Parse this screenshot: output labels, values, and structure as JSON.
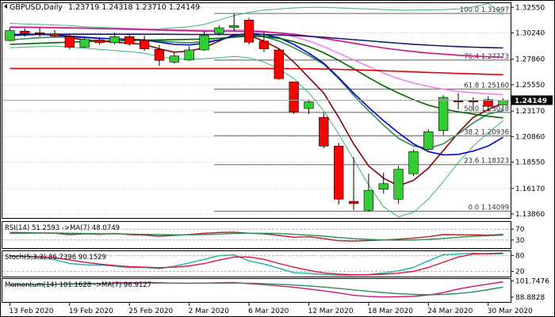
{
  "chart_data": [
    {
      "type": "candlestick",
      "title": "GBPUSD,Daily",
      "ohlc_header": "1.23719 1.24318 1.23710 1.24149",
      "current_price": 1.24149,
      "current_price_label": "1.24149",
      "ylim": [
        1.135,
        1.33
      ],
      "grid": true,
      "y_ticks": [
        {
          "value": 1.3255,
          "label": "1.32550"
        },
        {
          "value": 1.3024,
          "label": "1.30240"
        },
        {
          "value": 1.2786,
          "label": "1.27860"
        },
        {
          "value": 1.2555,
          "label": "1.25550"
        },
        {
          "value": 1.2317,
          "label": "1.23170"
        },
        {
          "value": 1.2086,
          "label": "1.20860"
        },
        {
          "value": 1.1855,
          "label": "1.18550"
        },
        {
          "value": 1.1617,
          "label": "1.16170"
        },
        {
          "value": 1.1386,
          "label": "1.13860"
        }
      ],
      "x_labels": [
        {
          "index": 0,
          "label": "13 Feb 2020"
        },
        {
          "index": 4,
          "label": "19 Feb 2020"
        },
        {
          "index": 8,
          "label": "25 Feb 2020"
        },
        {
          "index": 12,
          "label": "2 Mar 2020"
        },
        {
          "index": 16,
          "label": "6 Mar 2020"
        },
        {
          "index": 20,
          "label": "12 Mar 2020"
        },
        {
          "index": 24,
          "label": "18 Mar 2020"
        },
        {
          "index": 28,
          "label": "24 Mar 2020"
        },
        {
          "index": 32,
          "label": "30 Mar 2020"
        }
      ],
      "candles": [
        {
          "o": 1.2955,
          "h": 1.307,
          "l": 1.295,
          "c": 1.3045
        },
        {
          "o": 1.304,
          "h": 1.3065,
          "l": 1.299,
          "c": 1.302
        },
        {
          "o": 1.3025,
          "h": 1.307,
          "l": 1.299,
          "c": 1.3015
        },
        {
          "o": 1.3015,
          "h": 1.305,
          "l": 1.2985,
          "c": 1.2995
        },
        {
          "o": 1.299,
          "h": 1.301,
          "l": 1.2875,
          "c": 1.2895
        },
        {
          "o": 1.2895,
          "h": 1.298,
          "l": 1.2885,
          "c": 1.2965
        },
        {
          "o": 1.296,
          "h": 1.2985,
          "l": 1.2915,
          "c": 1.2935
        },
        {
          "o": 1.2935,
          "h": 1.3025,
          "l": 1.292,
          "c": 1.299
        },
        {
          "o": 1.299,
          "h": 1.3015,
          "l": 1.2905,
          "c": 1.2925
        },
        {
          "o": 1.296,
          "h": 1.3,
          "l": 1.286,
          "c": 1.288
        },
        {
          "o": 1.2875,
          "h": 1.2915,
          "l": 1.2725,
          "c": 1.2775
        },
        {
          "o": 1.276,
          "h": 1.2845,
          "l": 1.2745,
          "c": 1.2815
        },
        {
          "o": 1.278,
          "h": 1.29,
          "l": 1.277,
          "c": 1.287
        },
        {
          "o": 1.287,
          "h": 1.304,
          "l": 1.286,
          "c": 1.3
        },
        {
          "o": 1.302,
          "h": 1.309,
          "l": 1.3,
          "c": 1.307
        },
        {
          "o": 1.3072,
          "h": 1.32,
          "l": 1.304,
          "c": 1.309
        },
        {
          "o": 1.314,
          "h": 1.316,
          "l": 1.292,
          "c": 1.294
        },
        {
          "o": 1.295,
          "h": 1.303,
          "l": 1.285,
          "c": 1.288
        },
        {
          "o": 1.287,
          "h": 1.288,
          "l": 1.26,
          "c": 1.261
        },
        {
          "o": 1.258,
          "h": 1.258,
          "l": 1.229,
          "c": 1.231
        },
        {
          "o": 1.234,
          "h": 1.242,
          "l": 1.229,
          "c": 1.24
        },
        {
          "o": 1.226,
          "h": 1.23,
          "l": 1.198,
          "c": 1.2
        },
        {
          "o": 1.2,
          "h": 1.203,
          "l": 1.147,
          "c": 1.152
        },
        {
          "o": 1.15,
          "h": 1.19,
          "l": 1.142,
          "c": 1.148
        },
        {
          "o": 1.142,
          "h": 1.175,
          "l": 1.141,
          "c": 1.16
        },
        {
          "o": 1.161,
          "h": 1.176,
          "l": 1.157,
          "c": 1.166
        },
        {
          "o": 1.152,
          "h": 1.182,
          "l": 1.148,
          "c": 1.179
        },
        {
          "o": 1.175,
          "h": 1.197,
          "l": 1.173,
          "c": 1.195
        },
        {
          "o": 1.197,
          "h": 1.215,
          "l": 1.196,
          "c": 1.213
        },
        {
          "o": 1.214,
          "h": 1.246,
          "l": 1.21,
          "c": 1.244
        },
        {
          "o": 1.241,
          "h": 1.248,
          "l": 1.233,
          "c": 1.24
        },
        {
          "o": 1.241,
          "h": 1.244,
          "l": 1.232,
          "c": 1.24
        },
        {
          "o": 1.242,
          "h": 1.245,
          "l": 1.232,
          "c": 1.236
        },
        {
          "o": 1.23719,
          "h": 1.24318,
          "l": 1.2371,
          "c": 1.24149
        }
      ],
      "moving_averages": [
        {
          "color": "#8b0000",
          "values": [
            1.3,
            1.301,
            1.3015,
            1.301,
            1.298,
            1.296,
            1.295,
            1.294,
            1.293,
            1.292,
            1.288,
            1.285,
            1.286,
            1.289,
            1.295,
            1.301,
            1.3,
            1.295,
            1.288,
            1.276,
            1.262,
            1.248,
            1.226,
            1.202,
            1.182,
            1.171,
            1.164,
            1.169,
            1.18,
            1.196,
            1.212,
            1.226,
            1.233,
            1.239
          ]
        },
        {
          "color": "#2e8b57",
          "values": [
            1.296,
            1.297,
            1.298,
            1.2985,
            1.2985,
            1.298,
            1.2975,
            1.297,
            1.2965,
            1.296,
            1.295,
            1.294,
            1.2935,
            1.2945,
            1.296,
            1.299,
            1.301,
            1.299,
            1.295,
            1.289,
            1.282,
            1.274,
            1.261,
            1.246,
            1.232,
            1.219,
            1.207,
            1.2,
            1.198,
            1.202,
            1.211,
            1.221,
            1.229,
            1.232
          ]
        },
        {
          "color": "#0000cd",
          "values": [
            1.3,
            1.3005,
            1.301,
            1.3005,
            1.2995,
            1.2985,
            1.2975,
            1.297,
            1.2965,
            1.296,
            1.294,
            1.292,
            1.2915,
            1.293,
            1.296,
            1.3,
            1.302,
            1.301,
            1.298,
            1.292,
            1.284,
            1.275,
            1.262,
            1.248,
            1.235,
            1.223,
            1.212,
            1.202,
            1.195,
            1.192,
            1.1925,
            1.1955,
            1.2,
            1.208
          ]
        },
        {
          "color": "#006400",
          "values": [
            1.292,
            1.2925,
            1.293,
            1.2935,
            1.294,
            1.2945,
            1.295,
            1.2952,
            1.2955,
            1.2958,
            1.296,
            1.2962,
            1.2965,
            1.2968,
            1.2975,
            1.2985,
            1.2995,
            1.299,
            1.2975,
            1.2945,
            1.29,
            1.2845,
            1.2775,
            1.27,
            1.262,
            1.2545,
            1.248,
            1.242,
            1.237,
            1.2335,
            1.231,
            1.229,
            1.227,
            1.2255
          ]
        },
        {
          "color": "#ee82ee",
          "values": [
            1.308,
            1.3078,
            1.3075,
            1.3072,
            1.307,
            1.3068,
            1.3065,
            1.3062,
            1.306,
            1.3058,
            1.3055,
            1.3052,
            1.305,
            1.3048,
            1.3048,
            1.305,
            1.305,
            1.304,
            1.302,
            1.299,
            1.295,
            1.29,
            1.284,
            1.278,
            1.272,
            1.266,
            1.261,
            1.257,
            1.254,
            1.2515,
            1.2495,
            1.2482,
            1.2473,
            1.2465
          ]
        },
        {
          "color": "#c71585",
          "values": [
            1.3075,
            1.3074,
            1.3073,
            1.3071,
            1.3069,
            1.3066,
            1.3063,
            1.306,
            1.3057,
            1.3054,
            1.305,
            1.3046,
            1.3043,
            1.304,
            1.3038,
            1.3038,
            1.3037,
            1.3033,
            1.3025,
            1.3012,
            1.2995,
            1.2975,
            1.2953,
            1.293,
            1.2908,
            1.2888,
            1.287,
            1.2855,
            1.2842,
            1.2832,
            1.2822,
            1.2815,
            1.2809,
            1.2804
          ]
        },
        {
          "color": "#191970",
          "values": [
            1.301,
            1.3011,
            1.3012,
            1.3012,
            1.3012,
            1.3012,
            1.3012,
            1.3012,
            1.3012,
            1.3012,
            1.3012,
            1.3011,
            1.301,
            1.301,
            1.301,
            1.301,
            1.301,
            1.3008,
            1.3005,
            1.3,
            1.2993,
            1.2984,
            1.2974,
            1.2963,
            1.2952,
            1.2941,
            1.2931,
            1.2921,
            1.2913,
            1.2906,
            1.29,
            1.2895,
            1.2891,
            1.2888
          ]
        },
        {
          "color": "#dc0000",
          "values": [
            1.2702,
            1.2702,
            1.2702,
            1.2702,
            1.2702,
            1.2702,
            1.2702,
            1.2702,
            1.2702,
            1.2702,
            1.2702,
            1.2702,
            1.2702,
            1.2702,
            1.2702,
            1.2702,
            1.2702,
            1.2702,
            1.2701,
            1.27,
            1.2699,
            1.2697,
            1.2694,
            1.269,
            1.2686,
            1.2681,
            1.2676,
            1.2671,
            1.2666,
            1.2662,
            1.2657,
            1.2653,
            1.2649,
            1.2646
          ]
        }
      ],
      "bollinger_upper": {
        "color": "#3cb371",
        "values": [
          1.311,
          1.3105,
          1.31,
          1.3095,
          1.309,
          1.308,
          1.3075,
          1.307,
          1.3065,
          1.306,
          1.306,
          1.307,
          1.308,
          1.31,
          1.314,
          1.318,
          1.321,
          1.323,
          1.324,
          1.325,
          1.3255,
          1.3255,
          1.325,
          1.3245,
          1.324,
          1.3235,
          1.323,
          1.323,
          1.3232,
          1.3235,
          1.324,
          1.326,
          1.329,
          1.319
        ]
      },
      "bollinger_lower": {
        "color": "#3cb371",
        "values": [
          1.289,
          1.2895,
          1.29,
          1.2905,
          1.2895,
          1.2885,
          1.2875,
          1.2865,
          1.2855,
          1.284,
          1.281,
          1.279,
          1.2785,
          1.279,
          1.28,
          1.281,
          1.28,
          1.276,
          1.27,
          1.261,
          1.248,
          1.232,
          1.211,
          1.188,
          1.165,
          1.145,
          1.136,
          1.14,
          1.152,
          1.168,
          1.185,
          1.2,
          1.212,
          1.223
        ]
      },
      "fibonacci": [
        {
          "pct": "100.0",
          "price": "1.31997"
        },
        {
          "pct": "76.4",
          "price": "1.27773"
        },
        {
          "pct": "61.8",
          "price": "1.25160"
        },
        {
          "pct": "50.0",
          "price": "1.23048"
        },
        {
          "pct": "38.2",
          "price": "1.20936"
        },
        {
          "pct": "23.6",
          "price": "1.18323"
        },
        {
          "pct": "0.0",
          "price": "1.14099"
        }
      ]
    },
    {
      "type": "line",
      "title": "RSI(14) 51.2593 ->MA(7) 48.0749",
      "ylim": [
        0,
        100
      ],
      "y_ticks": [
        {
          "value": 70,
          "label": "70"
        },
        {
          "value": 30,
          "label": "30"
        }
      ],
      "levels": [
        70,
        30
      ],
      "series": [
        {
          "color": "#b22222",
          "values": [
            58,
            57,
            56,
            55,
            50,
            53,
            51,
            54,
            50,
            48,
            44,
            47,
            50,
            55,
            58,
            59,
            55,
            53,
            47,
            40,
            42,
            35,
            27,
            26,
            28,
            30,
            33,
            37,
            42,
            50,
            49,
            49,
            48,
            51
          ]
        },
        {
          "color": "#2e8b57",
          "values": [
            54,
            55,
            56,
            56,
            55,
            54,
            53,
            53,
            52,
            51,
            50,
            49,
            49,
            50,
            52,
            54,
            55,
            55,
            54,
            51,
            48,
            44,
            39,
            35,
            32,
            30,
            29,
            30,
            32,
            36,
            40,
            44,
            46,
            48
          ]
        }
      ]
    },
    {
      "type": "line",
      "title": "Stoch(5,3,3) 86.7396 90.1529",
      "ylim": [
        0,
        100
      ],
      "y_ticks": [
        {
          "value": 80,
          "label": "80"
        },
        {
          "value": 20,
          "label": "20"
        }
      ],
      "levels": [
        80,
        20
      ],
      "series": [
        {
          "color": "#20b2aa",
          "values": [
            80,
            76,
            72,
            65,
            50,
            45,
            44,
            40,
            34,
            35,
            30,
            40,
            52,
            66,
            80,
            83,
            60,
            48,
            32,
            15,
            12,
            8,
            5,
            6,
            8,
            14,
            22,
            35,
            60,
            84,
            86,
            90,
            86,
            87
          ]
        },
        {
          "color": "#dc143c",
          "values": [
            78,
            77,
            76,
            72,
            64,
            55,
            48,
            42,
            38,
            36,
            34,
            36,
            41,
            50,
            63,
            75,
            75,
            66,
            50,
            36,
            24,
            14,
            9,
            7,
            7,
            9,
            13,
            20,
            35,
            55,
            75,
            86,
            88,
            90
          ]
        }
      ]
    },
    {
      "type": "line",
      "title": "Momentum(14) 101.1628 ->MA(7) 96.9127",
      "ylim": [
        85,
        104
      ],
      "y_ticks": [
        {
          "value": 101.7476,
          "label": "101.7476"
        },
        {
          "value": 88.8828,
          "label": "88.8828"
        }
      ],
      "levels": [],
      "series": [
        {
          "color": "#c71585",
          "values": [
            98.5,
            98.6,
            98.9,
            99.2,
            99.5,
            99.7,
            99.9,
            100.2,
            100.4,
            100.5,
            100.4,
            100.0,
            99.8,
            100.0,
            100.3,
            100.5,
            99.6,
            98.8,
            97.8,
            96.8,
            95.3,
            93.8,
            92.2,
            90.3,
            89.4,
            89.0,
            89.1,
            89.5,
            90.5,
            92.5,
            95.3,
            97.5,
            99.2,
            101.16
          ]
        },
        {
          "color": "#2e8b57",
          "values": [
            98.8,
            98.8,
            98.9,
            99.0,
            99.1,
            99.3,
            99.5,
            99.7,
            99.9,
            100.0,
            100.1,
            100.1,
            100.0,
            100.0,
            100.0,
            100.1,
            100.0,
            99.6,
            99.1,
            98.5,
            97.8,
            96.9,
            95.8,
            94.6,
            93.5,
            92.5,
            91.6,
            91.0,
            90.7,
            91.0,
            91.8,
            93.0,
            94.8,
            96.91
          ]
        }
      ]
    }
  ]
}
